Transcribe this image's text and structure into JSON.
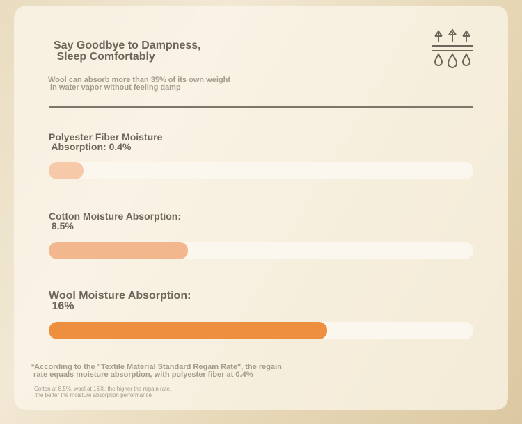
{
  "header": {
    "title_lines": [
      "Say Goodbye to Dampness,",
      " Sleep Comfortably"
    ],
    "subtitle_lines": [
      "Wool can absorb more than 35% of its own weight",
      " in water vapor without feeling damp"
    ]
  },
  "items": [
    {
      "label_lines": [
        "Polyester Fiber Moisture",
        " Absorption: 0.4%"
      ]
    },
    {
      "label_lines": [
        "Cotton Moisture Absorption:",
        " 8.5%"
      ]
    },
    {
      "label_lines": [
        "Wool Moisture Absorption:",
        " 16%"
      ]
    }
  ],
  "footnote_lines": [
    "*According to the \"Textile Material Standard Regain Rate\", the regain",
    " rate equals moisture absorption, with polyester fiber at 0.4%"
  ],
  "small_note_lines": [
    "Cotton at 8.5%, wool at 16%, the higher the regain rate,",
    " the better the moisture absorption performance"
  ]
}
